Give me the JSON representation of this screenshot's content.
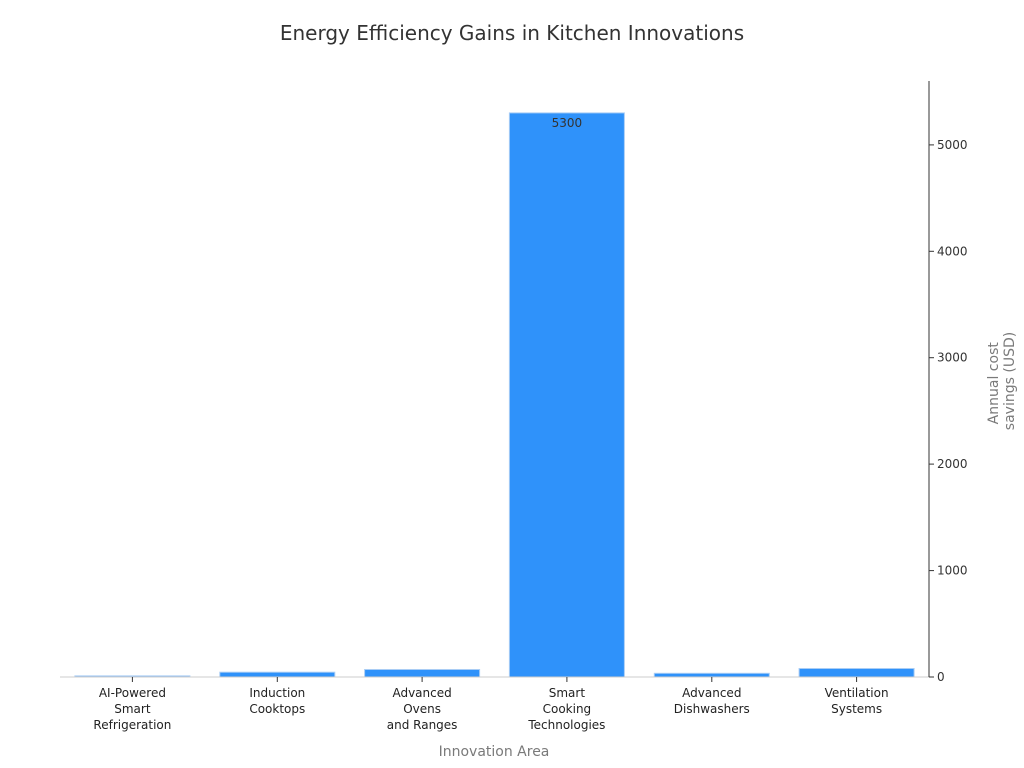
{
  "chart_data": {
    "type": "bar",
    "title": "Energy Efficiency Gains in Kitchen Innovations",
    "xlabel": "Innovation Area",
    "ylabel": "Annual cost savings (USD)",
    "categories": [
      "AI-Powered Smart Refrigeration",
      "Induction Cooktops",
      "Advanced Ovens and Ranges",
      "Smart Cooking Technologies",
      "Advanced Dishwashers",
      "Ventilation Systems"
    ],
    "values": [
      10,
      45,
      70,
      5300,
      35,
      80
    ],
    "data_labels": [
      "",
      "",
      "",
      "5300",
      "",
      ""
    ],
    "ylim": [
      0,
      5600
    ],
    "yticks": [
      0,
      1000,
      2000,
      3000,
      4000,
      5000
    ],
    "y_axis_side": "right",
    "grid": false,
    "legend": "none",
    "bar_color": "#2f92fa",
    "bar_edge_color": "#a9cdf5"
  }
}
